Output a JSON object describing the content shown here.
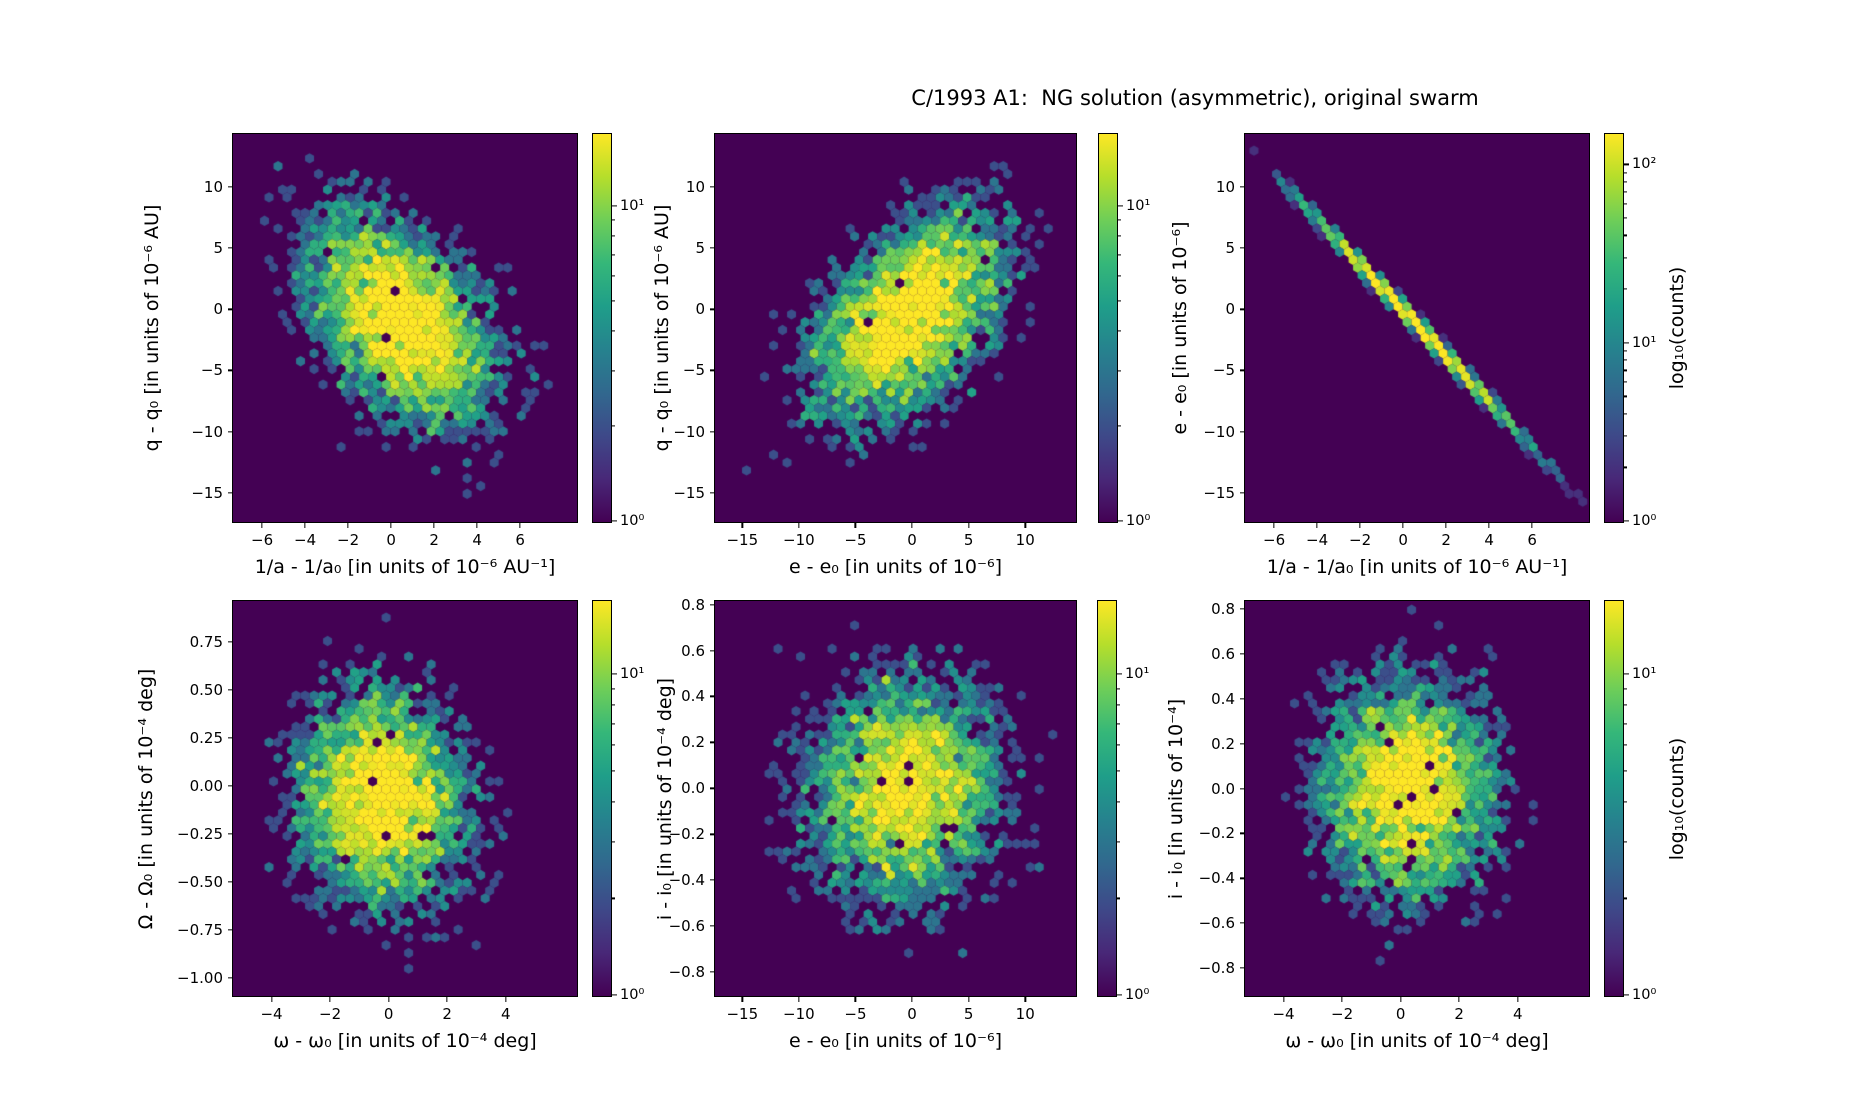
{
  "figure": {
    "title": "C/1993 A1:  NG solution (asymmetric), original swarm",
    "colorbar_label": "log₁₀(counts)",
    "background_color": "#ffffff",
    "plot_background_color": "#440154",
    "viridis_stops": [
      "#440154",
      "#482878",
      "#3e4989",
      "#31688e",
      "#26828e",
      "#1f9e89",
      "#35b779",
      "#6ece58",
      "#b5de2b",
      "#fde725"
    ]
  },
  "chart_data": [
    {
      "type": "heatmap",
      "subtype": "hexbin-log-density",
      "panel": "top-left",
      "xlabel": "1/a - 1/a₀ [in units of 10⁻⁶ AU⁻¹]",
      "ylabel": "q - q₀ [in units of 10⁻⁶ AU]",
      "xlim": [
        -7.4,
        8.6
      ],
      "ylim": [
        -17.3,
        14.4
      ],
      "xticks": [
        {
          "v": -6,
          "label": "−6"
        },
        {
          "v": -4,
          "label": "−4"
        },
        {
          "v": -2,
          "label": "−2"
        },
        {
          "v": 0,
          "label": "0"
        },
        {
          "v": 2,
          "label": "2"
        },
        {
          "v": 4,
          "label": "4"
        },
        {
          "v": 6,
          "label": "6"
        }
      ],
      "yticks": [
        {
          "v": 10,
          "label": "10"
        },
        {
          "v": 5,
          "label": "5"
        },
        {
          "v": 0,
          "label": "0"
        },
        {
          "v": -5,
          "label": "−5"
        },
        {
          "v": -10,
          "label": "−10"
        },
        {
          "v": -15,
          "label": "−15"
        }
      ],
      "colorbar": {
        "vmin": 1,
        "vmax": 17,
        "ticks": [
          {
            "v": 10,
            "label": "10¹"
          },
          {
            "v": 1,
            "label": "10⁰"
          }
        ],
        "label": null
      },
      "distribution": {
        "center": [
          0.4,
          -0.8
        ],
        "sigma": [
          2.3,
          4.6
        ],
        "rho": -0.45,
        "n_points": 5000,
        "peak_count": 22
      }
    },
    {
      "type": "heatmap",
      "subtype": "hexbin-log-density",
      "panel": "top-middle",
      "xlabel": "e - e₀ [in units of 10⁻⁶]",
      "ylabel": "q - q₀ [in units of 10⁻⁶ AU]",
      "xlim": [
        -17.5,
        14.4
      ],
      "ylim": [
        -17.3,
        14.4
      ],
      "xticks": [
        {
          "v": -15,
          "label": "−15"
        },
        {
          "v": -10,
          "label": "−10"
        },
        {
          "v": -5,
          "label": "−5"
        },
        {
          "v": 0,
          "label": "0"
        },
        {
          "v": 5,
          "label": "5"
        },
        {
          "v": 10,
          "label": "10"
        }
      ],
      "yticks": [
        {
          "v": 10,
          "label": "10"
        },
        {
          "v": 5,
          "label": "5"
        },
        {
          "v": 0,
          "label": "0"
        },
        {
          "v": -5,
          "label": "−5"
        },
        {
          "v": -10,
          "label": "−10"
        },
        {
          "v": -15,
          "label": "−15"
        }
      ],
      "colorbar": {
        "vmin": 1,
        "vmax": 17,
        "ticks": [
          {
            "v": 10,
            "label": "10¹"
          },
          {
            "v": 1,
            "label": "10⁰"
          }
        ],
        "label": null
      },
      "distribution": {
        "center": [
          -0.5,
          -0.5
        ],
        "sigma": [
          4.6,
          4.6
        ],
        "rho": 0.5,
        "n_points": 5000,
        "peak_count": 22
      }
    },
    {
      "type": "heatmap",
      "subtype": "hexbin-log-density",
      "panel": "top-right",
      "xlabel": "1/a - 1/a₀ [in units of 10⁻⁶ AU⁻¹]",
      "ylabel": "e - e₀ [in units of 10⁻⁶]",
      "xlim": [
        -7.4,
        8.6
      ],
      "ylim": [
        -17.3,
        14.4
      ],
      "xticks": [
        {
          "v": -6,
          "label": "−6"
        },
        {
          "v": -4,
          "label": "−4"
        },
        {
          "v": -2,
          "label": "−2"
        },
        {
          "v": 0,
          "label": "0"
        },
        {
          "v": 2,
          "label": "2"
        },
        {
          "v": 4,
          "label": "4"
        },
        {
          "v": 6,
          "label": "6"
        }
      ],
      "yticks": [
        {
          "v": 10,
          "label": "10"
        },
        {
          "v": 5,
          "label": "5"
        },
        {
          "v": 0,
          "label": "0"
        },
        {
          "v": -5,
          "label": "−5"
        },
        {
          "v": -10,
          "label": "−10"
        },
        {
          "v": -15,
          "label": "−15"
        }
      ],
      "colorbar": {
        "vmin": 1,
        "vmax": 150,
        "ticks": [
          {
            "v": 100,
            "label": "10²"
          },
          {
            "v": 10,
            "label": "10¹"
          },
          {
            "v": 1,
            "label": "10⁰"
          }
        ],
        "label": "log₁₀(counts)"
      },
      "distribution": {
        "center": [
          0.5,
          -1.0
        ],
        "sigma": [
          2.35,
          4.4
        ],
        "rho": -0.9965,
        "n_points": 5000,
        "peak_count": 230
      }
    },
    {
      "type": "heatmap",
      "subtype": "hexbin-log-density",
      "panel": "bottom-left",
      "xlabel": "ω - ω₀ [in units of 10⁻⁴ deg]",
      "ylabel": "Ω - Ω₀ [in units of 10⁻⁴ deg]",
      "xlim": [
        -5.35,
        6.4
      ],
      "ylim": [
        -1.09,
        0.97
      ],
      "xticks": [
        {
          "v": -4,
          "label": "−4"
        },
        {
          "v": -2,
          "label": "−2"
        },
        {
          "v": 0,
          "label": "0"
        },
        {
          "v": 2,
          "label": "2"
        },
        {
          "v": 4,
          "label": "4"
        }
      ],
      "yticks": [
        {
          "v": 0.75,
          "label": "0.75"
        },
        {
          "v": 0.5,
          "label": "0.50"
        },
        {
          "v": 0.25,
          "label": "0.25"
        },
        {
          "v": 0,
          "label": "0.00"
        },
        {
          "v": -0.25,
          "label": "−0.25"
        },
        {
          "v": -0.5,
          "label": "−0.50"
        },
        {
          "v": -0.75,
          "label": "−0.75"
        },
        {
          "v": -1,
          "label": "−1.00"
        }
      ],
      "colorbar": {
        "vmin": 1,
        "vmax": 17,
        "ticks": [
          {
            "v": 10,
            "label": "10¹"
          },
          {
            "v": 1,
            "label": "10⁰"
          }
        ],
        "label": null
      },
      "distribution": {
        "center": [
          -0.3,
          -0.05
        ],
        "sigma": [
          1.55,
          0.3
        ],
        "rho": -0.1,
        "n_points": 5000,
        "peak_count": 21
      }
    },
    {
      "type": "heatmap",
      "subtype": "hexbin-log-density",
      "panel": "bottom-middle",
      "xlabel": "e - e₀ [in units of 10⁻⁶]",
      "ylabel": "i - i₀ [in units of 10⁻⁴ deg]",
      "xlim": [
        -17.5,
        14.4
      ],
      "ylim": [
        -0.9,
        0.82
      ],
      "xticks": [
        {
          "v": -15,
          "label": "−15"
        },
        {
          "v": -10,
          "label": "−10"
        },
        {
          "v": -5,
          "label": "−5"
        },
        {
          "v": 0,
          "label": "0"
        },
        {
          "v": 5,
          "label": "5"
        },
        {
          "v": 10,
          "label": "10"
        }
      ],
      "yticks": [
        {
          "v": 0.8,
          "label": "0.8"
        },
        {
          "v": 0.6,
          "label": "0.6"
        },
        {
          "v": 0.4,
          "label": "0.4"
        },
        {
          "v": 0.2,
          "label": "0.2"
        },
        {
          "v": 0,
          "label": "0.0"
        },
        {
          "v": -0.2,
          "label": "−0.2"
        },
        {
          "v": -0.4,
          "label": "−0.4"
        },
        {
          "v": -0.6,
          "label": "−0.6"
        },
        {
          "v": -0.8,
          "label": "−0.8"
        }
      ],
      "colorbar": {
        "vmin": 1,
        "vmax": 17,
        "ticks": [
          {
            "v": 10,
            "label": "10¹"
          },
          {
            "v": 1,
            "label": "10⁰"
          }
        ],
        "label": null
      },
      "distribution": {
        "center": [
          -0.8,
          0.0
        ],
        "sigma": [
          4.6,
          0.26
        ],
        "rho": 0.08,
        "n_points": 5000,
        "peak_count": 19
      }
    },
    {
      "type": "heatmap",
      "subtype": "hexbin-log-density",
      "panel": "bottom-right",
      "xlabel": "ω - ω₀ [in units of 10⁻⁴ deg]",
      "ylabel": "i - i₀ [in units of 10⁻⁴]",
      "xlim": [
        -5.35,
        6.4
      ],
      "ylim": [
        -0.92,
        0.84
      ],
      "xticks": [
        {
          "v": -4,
          "label": "−4"
        },
        {
          "v": -2,
          "label": "−2"
        },
        {
          "v": 0,
          "label": "0"
        },
        {
          "v": 2,
          "label": "2"
        },
        {
          "v": 4,
          "label": "4"
        }
      ],
      "yticks": [
        {
          "v": 0.8,
          "label": "0.8"
        },
        {
          "v": 0.6,
          "label": "0.6"
        },
        {
          "v": 0.4,
          "label": "0.4"
        },
        {
          "v": 0.2,
          "label": "0.2"
        },
        {
          "v": 0,
          "label": "0.0"
        },
        {
          "v": -0.2,
          "label": "−0.2"
        },
        {
          "v": -0.4,
          "label": "−0.4"
        },
        {
          "v": -0.6,
          "label": "−0.6"
        },
        {
          "v": -0.8,
          "label": "−0.8"
        }
      ],
      "colorbar": {
        "vmin": 1,
        "vmax": 17,
        "ticks": [
          {
            "v": 10,
            "label": "10¹"
          },
          {
            "v": 1,
            "label": "10⁰"
          }
        ],
        "label": "log₁₀(counts)"
      },
      "distribution": {
        "center": [
          0.2,
          0.0
        ],
        "sigma": [
          1.55,
          0.26
        ],
        "rho": 0.0,
        "n_points": 5000,
        "peak_count": 20
      }
    }
  ]
}
